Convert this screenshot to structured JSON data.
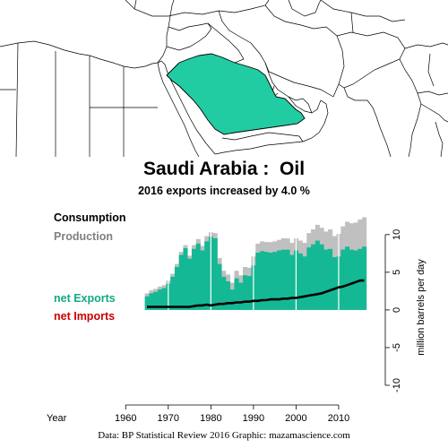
{
  "title": "Saudi Arabia :  Oil",
  "subtitle": "2016 exports increased by 4.0 %",
  "footer": "Data: BP Statistical Review 2016    Graphic: mazamascience.com",
  "colors": {
    "consumption": "#000000",
    "production": "#c0c0c0",
    "net_exports": "#14b894",
    "net_imports": "#cc0000",
    "country_fill": "#22cca2",
    "gridline": "#ffffff"
  },
  "chart_data": {
    "type": "area",
    "title": "Saudi Arabia :  Oil",
    "subtitle": "2016 exports increased by 4.0 %",
    "xlabel": "Year",
    "ylabel": "million barrels per day",
    "xlim": [
      1957,
      2018
    ],
    "ylim": [
      -10,
      12
    ],
    "xticks": [
      1960,
      1970,
      1980,
      1990,
      2000,
      2010
    ],
    "yticks": [
      -10,
      -5,
      0,
      5,
      10
    ],
    "legend": [
      "Consumption",
      "Production",
      "net Exports",
      "net Imports"
    ],
    "x": [
      1965,
      1966,
      1967,
      1968,
      1969,
      1970,
      1971,
      1972,
      1973,
      1974,
      1975,
      1976,
      1977,
      1978,
      1979,
      1980,
      1981,
      1982,
      1983,
      1984,
      1985,
      1986,
      1987,
      1988,
      1989,
      1990,
      1991,
      1992,
      1993,
      1994,
      1995,
      1996,
      1997,
      1998,
      1999,
      2000,
      2001,
      2002,
      2003,
      2004,
      2005,
      2006,
      2007,
      2008,
      2009,
      2010,
      2011,
      2012,
      2013,
      2014,
      2015,
      2016
    ],
    "series": [
      {
        "name": "Production",
        "values": [
          2.2,
          2.6,
          2.8,
          3.1,
          3.3,
          3.9,
          4.8,
          6.1,
          7.7,
          8.6,
          7.2,
          8.6,
          9.4,
          8.5,
          9.8,
          10.3,
          10.2,
          6.9,
          5.2,
          4.7,
          3.6,
          5.2,
          4.6,
          5.7,
          5.6,
          7.1,
          8.8,
          9.1,
          9.0,
          9.0,
          9.1,
          9.3,
          9.5,
          9.5,
          8.9,
          9.5,
          9.2,
          8.9,
          10.2,
          10.7,
          11.3,
          10.9,
          10.4,
          10.7,
          9.8,
          10.1,
          11.1,
          11.7,
          11.5,
          11.6,
          12.0,
          12.3
        ]
      },
      {
        "name": "Consumption",
        "values": [
          0.4,
          0.4,
          0.4,
          0.4,
          0.4,
          0.4,
          0.4,
          0.4,
          0.4,
          0.4,
          0.4,
          0.5,
          0.6,
          0.6,
          0.7,
          0.6,
          0.7,
          0.8,
          0.8,
          0.9,
          0.9,
          1.0,
          1.0,
          1.1,
          1.1,
          1.2,
          1.2,
          1.3,
          1.3,
          1.4,
          1.4,
          1.4,
          1.5,
          1.5,
          1.6,
          1.6,
          1.7,
          1.8,
          1.9,
          2.0,
          2.1,
          2.2,
          2.4,
          2.6,
          2.8,
          3.0,
          3.1,
          3.3,
          3.5,
          3.7,
          3.9,
          3.9
        ]
      },
      {
        "name": "net Exports",
        "values": [
          1.8,
          2.2,
          2.4,
          2.7,
          2.9,
          3.5,
          4.4,
          5.7,
          7.3,
          8.2,
          6.8,
          8.1,
          8.8,
          7.9,
          9.1,
          9.7,
          9.5,
          6.1,
          4.4,
          3.8,
          2.7,
          4.2,
          3.6,
          4.6,
          4.5,
          5.9,
          7.6,
          7.8,
          7.7,
          7.6,
          7.7,
          7.9,
          8.0,
          8.0,
          7.3,
          7.9,
          7.5,
          7.1,
          8.3,
          8.7,
          9.2,
          8.7,
          8.0,
          8.1,
          7.0,
          7.1,
          8.0,
          8.4,
          8.0,
          7.9,
          8.1,
          8.4
        ]
      }
    ]
  }
}
